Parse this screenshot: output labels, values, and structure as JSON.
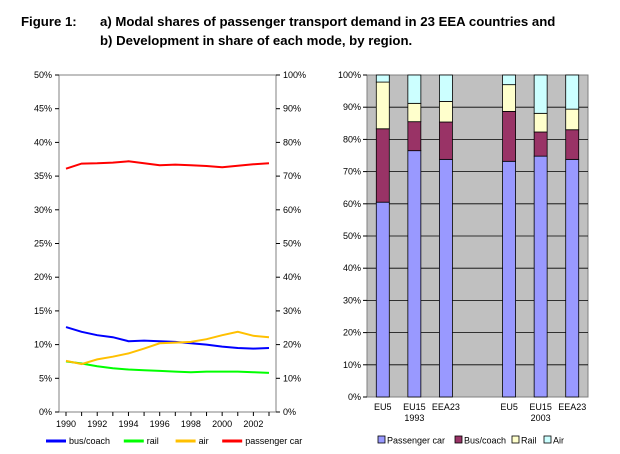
{
  "figure": {
    "label": "Figure 1:",
    "title_line1": "a) Modal shares of passenger transport demand in 23 EEA countries and",
    "title_line2": "b) Development in share of each mode, by region."
  },
  "chart_data": [
    {
      "type": "line",
      "x": [
        1990,
        1991,
        1992,
        1993,
        1994,
        1995,
        1996,
        1997,
        1998,
        1999,
        2000,
        2001,
        2002,
        2003
      ],
      "xticks": [
        "1990",
        "1992",
        "1994",
        "1996",
        "1998",
        "2000",
        "2002"
      ],
      "yticks_left": [
        "0%",
        "5%",
        "10%",
        "15%",
        "20%",
        "25%",
        "30%",
        "35%",
        "40%",
        "45%",
        "50%"
      ],
      "yticks_right": [
        "0%",
        "10%",
        "20%",
        "30%",
        "40%",
        "50%",
        "60%",
        "70%",
        "80%",
        "90%",
        "100%"
      ],
      "ylim_left": [
        0,
        50
      ],
      "ylim_right": [
        0,
        100
      ],
      "legend_position": "bottom",
      "series": [
        {
          "name": "bus/coach",
          "color": "#0000ff",
          "axis": "left",
          "values": [
            12.6,
            11.9,
            11.4,
            11.1,
            10.5,
            10.6,
            10.5,
            10.4,
            10.2,
            10.0,
            9.7,
            9.5,
            9.4,
            9.5
          ]
        },
        {
          "name": "rail",
          "color": "#00ff00",
          "axis": "left",
          "values": [
            7.5,
            7.2,
            6.8,
            6.5,
            6.3,
            6.2,
            6.1,
            6.0,
            5.9,
            6.0,
            6.0,
            6.0,
            5.9,
            5.8
          ]
        },
        {
          "name": "air",
          "color": "#ffc000",
          "axis": "left",
          "values": [
            7.6,
            7.1,
            7.8,
            8.2,
            8.7,
            9.4,
            10.2,
            10.3,
            10.4,
            10.8,
            11.4,
            11.9,
            11.3,
            11.1
          ]
        },
        {
          "name": "passenger car",
          "color": "#ff0000",
          "axis": "right",
          "values": [
            72.2,
            73.7,
            73.8,
            74.0,
            74.4,
            73.8,
            73.2,
            73.4,
            73.2,
            73.0,
            72.6,
            73.1,
            73.5,
            73.8
          ]
        }
      ]
    },
    {
      "type": "bar",
      "stacked": true,
      "categories": [
        "EU5",
        "EU15",
        "EEA23",
        "EU5",
        "EU15",
        "EEA23"
      ],
      "group_labels": [
        "1993",
        "2003"
      ],
      "yticks": [
        "0%",
        "10%",
        "20%",
        "30%",
        "40%",
        "50%",
        "60%",
        "70%",
        "80%",
        "90%",
        "100%"
      ],
      "ylim": [
        0,
        100
      ],
      "grid": true,
      "legend_position": "bottom",
      "series": [
        {
          "name": "Passenger car",
          "color": "#9999ff",
          "values": [
            60.5,
            76.5,
            73.8,
            73.2,
            74.8,
            73.8
          ]
        },
        {
          "name": "Bus/coach",
          "color": "#993366",
          "values": [
            22.8,
            9.0,
            11.6,
            15.5,
            7.5,
            9.2
          ]
        },
        {
          "name": "Rail",
          "color": "#ffffcc",
          "values": [
            14.5,
            5.7,
            6.4,
            8.3,
            5.8,
            6.4
          ]
        },
        {
          "name": "Air",
          "color": "#ccffff",
          "values": [
            2.2,
            8.8,
            8.2,
            3.0,
            11.9,
            10.6
          ]
        }
      ]
    }
  ]
}
